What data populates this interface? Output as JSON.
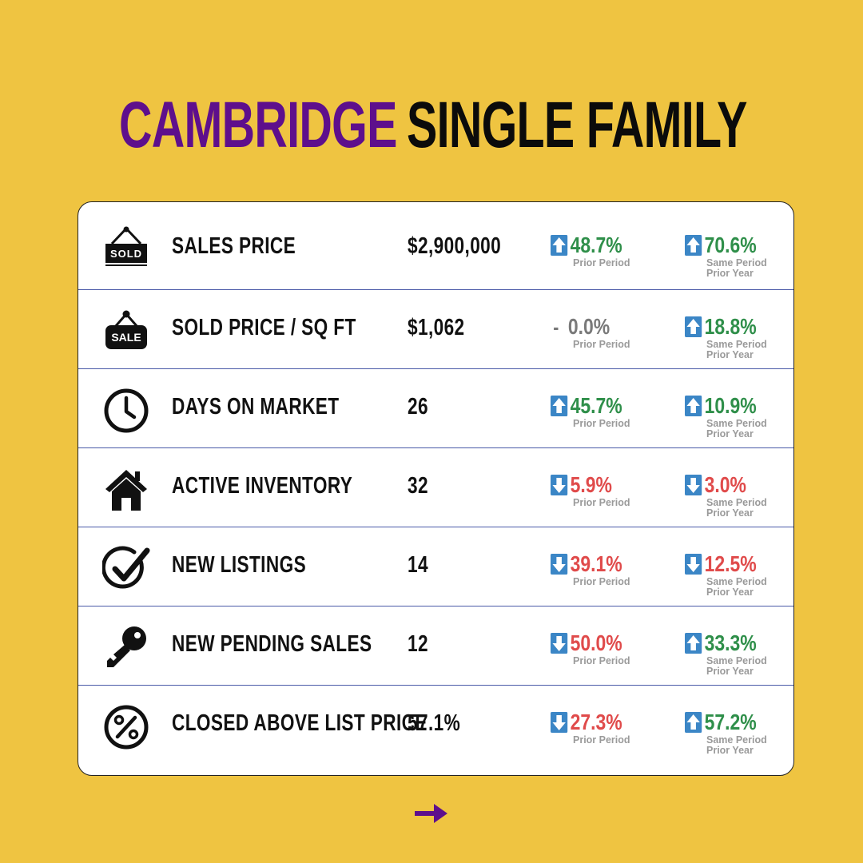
{
  "title": {
    "city": "CAMBRIDGE",
    "type": "SINGLE FAMILY"
  },
  "colors": {
    "background": "#EFC441",
    "accent": "#5E0F8C",
    "up": "#2F8F4A",
    "down": "#E04B4B",
    "flat": "#7A7A7A",
    "arrow_box": "#3B86C6"
  },
  "rows": [
    {
      "icon": "sold-sign-icon",
      "label": "SALES PRICE",
      "value": "$2,900,000",
      "prior_period": {
        "direction": "up",
        "text": "48.7%",
        "caption": "Prior Period"
      },
      "prior_year": {
        "direction": "up",
        "text": "70.6%",
        "caption1": "Same Period",
        "caption2": "Prior Year"
      }
    },
    {
      "icon": "sale-tag-icon",
      "label": "SOLD PRICE / SQ FT",
      "value": "$1,062",
      "prior_period": {
        "direction": "flat",
        "dash": "-",
        "text": "0.0%",
        "caption": "Prior Period"
      },
      "prior_year": {
        "direction": "up",
        "text": "18.8%",
        "caption1": "Same Period",
        "caption2": "Prior Year"
      }
    },
    {
      "icon": "clock-icon",
      "label": "DAYS ON MARKET",
      "value": "26",
      "prior_period": {
        "direction": "up",
        "text": "45.7%",
        "caption": "Prior Period"
      },
      "prior_year": {
        "direction": "up",
        "text": "10.9%",
        "caption1": "Same Period",
        "caption2": "Prior Year"
      }
    },
    {
      "icon": "house-icon",
      "label": "ACTIVE INVENTORY",
      "value": "32",
      "prior_period": {
        "direction": "down",
        "text": "5.9%",
        "caption": "Prior Period"
      },
      "prior_year": {
        "direction": "down",
        "text": "3.0%",
        "caption1": "Same Period",
        "caption2": "Prior Year"
      }
    },
    {
      "icon": "checkmark-circle-icon",
      "label": "NEW LISTINGS",
      "value": "14",
      "prior_period": {
        "direction": "down",
        "text": "39.1%",
        "caption": "Prior Period"
      },
      "prior_year": {
        "direction": "down",
        "text": "12.5%",
        "caption1": "Same Period",
        "caption2": "Prior Year"
      }
    },
    {
      "icon": "key-icon",
      "label": "NEW PENDING SALES",
      "value": "12",
      "prior_period": {
        "direction": "down",
        "text": "50.0%",
        "caption": "Prior Period"
      },
      "prior_year": {
        "direction": "up",
        "text": "33.3%",
        "caption1": "Same Period",
        "caption2": "Prior Year"
      }
    },
    {
      "icon": "percent-circle-icon",
      "label": "CLOSED ABOVE LIST PRICE",
      "value": "57.1%",
      "prior_period": {
        "direction": "down",
        "text": "27.3%",
        "caption": "Prior Period"
      },
      "prior_year": {
        "direction": "up",
        "text": "57.2%",
        "caption1": "Same Period",
        "caption2": "Prior Year"
      }
    }
  ],
  "footer": {
    "icon": "next-arrow-icon"
  }
}
